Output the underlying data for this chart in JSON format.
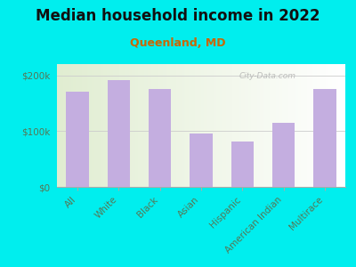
{
  "title": "Median household income in 2022",
  "subtitle": "Queenland, MD",
  "categories": [
    "All",
    "White",
    "Black",
    "Asian",
    "Hispanic",
    "American Indian",
    "Multirace"
  ],
  "values": [
    170000,
    192000,
    176000,
    95000,
    82000,
    115000,
    175000
  ],
  "bar_color": "#C4AEE0",
  "background_color": "#00EEEE",
  "title_color": "#111111",
  "subtitle_color": "#CC6600",
  "tick_color": "#557755",
  "ylim": [
    0,
    220000
  ],
  "yticks": [
    0,
    100000,
    200000
  ],
  "ytick_labels": [
    "$0",
    "$100k",
    "$200k"
  ],
  "watermark": "City-Data.com",
  "title_fontsize": 12,
  "subtitle_fontsize": 9,
  "tick_fontsize": 7.5
}
